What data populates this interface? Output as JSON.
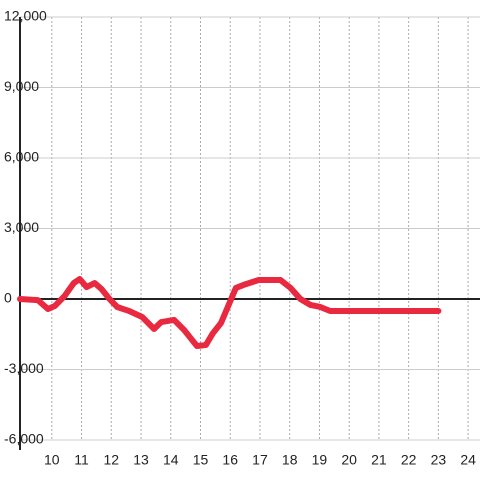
{
  "chart_data": {
    "type": "line",
    "x": [
      8.93,
      9.53,
      9.87,
      10.1,
      10.43,
      10.74,
      10.94,
      11.17,
      11.44,
      11.67,
      11.94,
      12.2,
      12.6,
      13.04,
      13.44,
      13.68,
      14.11,
      14.45,
      14.88,
      15.18,
      15.42,
      15.69,
      16.19,
      16.45,
      16.96,
      17.69,
      18.03,
      18.36,
      18.7,
      19.03,
      19.36,
      23.0
    ],
    "series": [
      {
        "color": "#e8293f",
        "values": [
          0,
          -50,
          -425,
          -300,
          128,
          680,
          850,
          510,
          680,
          425,
          0,
          -340,
          -510,
          -765,
          -1275,
          -980,
          -890,
          -1320,
          -2000,
          -1960,
          -1450,
          -1020,
          470,
          600,
          810,
          810,
          470,
          0,
          -255,
          -340,
          -510,
          -510
        ]
      }
    ],
    "xlim": [
      8.93,
      24.4
    ],
    "xticks": [
      10,
      11,
      12,
      13,
      14,
      15,
      16,
      17,
      18,
      19,
      20,
      21,
      22,
      23,
      24
    ],
    "ylim": [
      -6000,
      12000
    ],
    "yticks": [
      {
        "value": -6000,
        "label": "-6,000"
      },
      {
        "value": -3000,
        "label": "-3,000"
      },
      0,
      {
        "value": 3000,
        "label": "3,000"
      },
      {
        "value": 6000,
        "label": "6,000"
      },
      {
        "value": 9000,
        "label": "9,000"
      },
      {
        "value": 12000,
        "label": "12,000"
      }
    ],
    "grid": true
  }
}
